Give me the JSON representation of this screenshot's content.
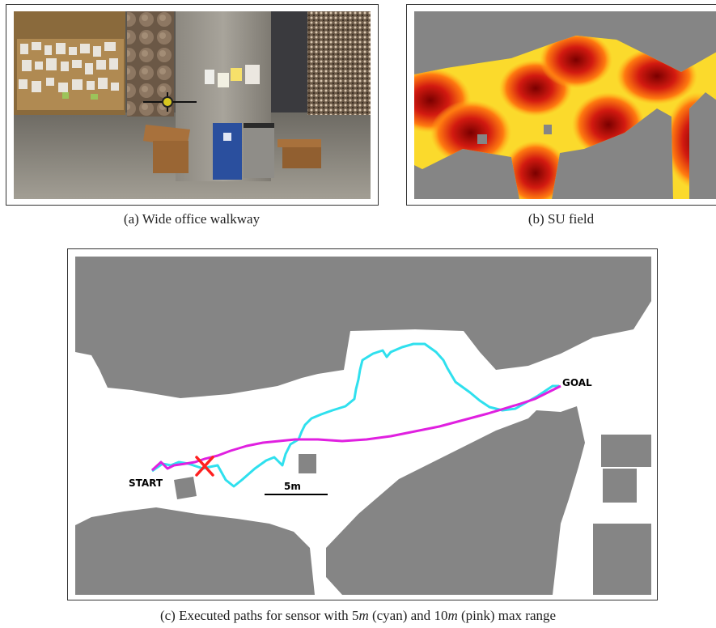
{
  "figure_a": {
    "caption": "(a)  Wide office walkway",
    "scene_items": [
      "bulletin-board",
      "concrete-pillar",
      "bench",
      "recycling-bin",
      "trash-bin",
      "quadrotor-drone"
    ]
  },
  "figure_b": {
    "caption": "(b)  SU field",
    "colormap": [
      "#8b0000",
      "#d82010",
      "#ff7a10",
      "#ffd21a",
      "#f8f060"
    ],
    "background_color": "#858585"
  },
  "figure_c": {
    "caption_pre": "(c)  Executed paths for sensor with ",
    "range_short": "5",
    "unit": "m",
    "caption_mid1": " (cyan) and ",
    "range_long": "10",
    "caption_mid2": " (pink) max range",
    "label_start": "START",
    "label_goal": "GOAL",
    "scale_label": "5m",
    "path_colors": {
      "cyan": "#2fe0ee",
      "pink": "#e020e0",
      "failure_marker": "#ff2020"
    },
    "obstacle_color": "#858585"
  }
}
